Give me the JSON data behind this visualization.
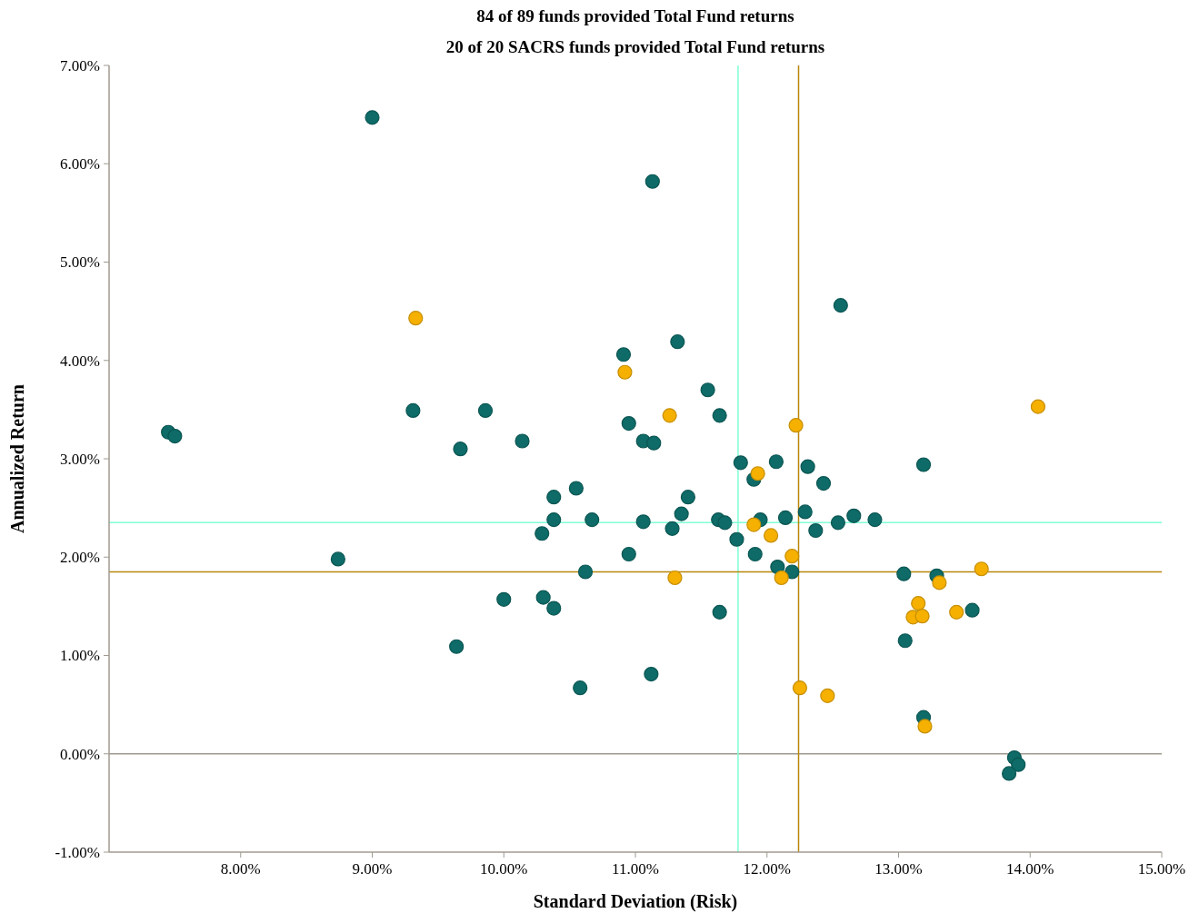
{
  "chart_data": {
    "type": "scatter",
    "title": "84 of 89 funds provided Total Fund returns",
    "subtitle": "20 of 20 SACRS funds provided Total Fund returns",
    "xlabel": "Standard Deviation (Risk)",
    "ylabel": "Annualized Return",
    "xlim": [
      7,
      15
    ],
    "ylim": [
      -1,
      7
    ],
    "xticks": [
      {
        "value": 8,
        "label": "8.00%"
      },
      {
        "value": 9,
        "label": "9.00%"
      },
      {
        "value": 10,
        "label": "10.00%"
      },
      {
        "value": 11,
        "label": "11.00%"
      },
      {
        "value": 12,
        "label": "12.00%"
      },
      {
        "value": 13,
        "label": "13.00%"
      },
      {
        "value": 14,
        "label": "14.00%"
      },
      {
        "value": 15,
        "label": "15.00%"
      }
    ],
    "yticks": [
      {
        "value": -1,
        "label": "-1.00%"
      },
      {
        "value": 0,
        "label": "0.00%"
      },
      {
        "value": 1,
        "label": "1.00%"
      },
      {
        "value": 2,
        "label": "2.00%"
      },
      {
        "value": 3,
        "label": "3.00%"
      },
      {
        "value": 4,
        "label": "4.00%"
      },
      {
        "value": 5,
        "label": "5.00%"
      },
      {
        "value": 6,
        "label": "6.00%"
      },
      {
        "value": 7,
        "label": "7.00%"
      }
    ],
    "grid": false,
    "marker": "circle",
    "ref_lines": [
      {
        "axis": "y",
        "value": 0,
        "color": "#a09a90"
      },
      {
        "axis": "x",
        "value": 11.78,
        "color": "#7fffd4"
      },
      {
        "axis": "y",
        "value": 2.35,
        "color": "#7fffd4"
      },
      {
        "axis": "x",
        "value": 12.24,
        "color": "#b8860b"
      },
      {
        "axis": "y",
        "value": 1.85,
        "color": "#b8860b"
      }
    ],
    "series": [
      {
        "color": "#0e6b67",
        "x": [
          9.0,
          11.13,
          12.56,
          11.32,
          10.91,
          11.55,
          9.31,
          9.86,
          7.45,
          7.5,
          11.64,
          10.95,
          10.14,
          9.67,
          11.06,
          11.14,
          11.8,
          12.07,
          12.31,
          13.19,
          12.43,
          11.9,
          10.55,
          10.38,
          11.4,
          11.35,
          12.29,
          12.66,
          12.82,
          10.38,
          10.67,
          11.06,
          11.63,
          11.68,
          11.95,
          12.14,
          12.54,
          12.37,
          11.28,
          10.29,
          11.77,
          10.95,
          11.91,
          12.08,
          12.19,
          10.62,
          13.04,
          13.29,
          8.74,
          10.0,
          10.3,
          10.38,
          11.64,
          13.56,
          9.64,
          13.05,
          11.12,
          10.58,
          13.19,
          13.88,
          13.91,
          13.84
        ],
        "values": [
          6.47,
          5.82,
          4.56,
          4.19,
          4.06,
          3.7,
          3.49,
          3.49,
          3.27,
          3.23,
          3.44,
          3.36,
          3.18,
          3.1,
          3.18,
          3.16,
          2.96,
          2.97,
          2.92,
          2.94,
          2.75,
          2.79,
          2.7,
          2.61,
          2.61,
          2.44,
          2.46,
          2.42,
          2.38,
          2.38,
          2.38,
          2.36,
          2.38,
          2.35,
          2.38,
          2.4,
          2.35,
          2.27,
          2.29,
          2.24,
          2.18,
          2.03,
          2.03,
          1.9,
          1.85,
          1.85,
          1.83,
          1.81,
          1.98,
          1.57,
          1.59,
          1.48,
          1.44,
          1.46,
          1.09,
          1.15,
          0.81,
          0.67,
          0.37,
          -0.04,
          -0.11,
          -0.2
        ]
      },
      {
        "color": "#f5b000",
        "x": [
          9.33,
          10.92,
          11.26,
          12.22,
          14.06,
          11.93,
          11.9,
          12.03,
          12.19,
          12.11,
          11.3,
          13.63,
          13.15,
          13.31,
          13.11,
          13.18,
          13.44,
          12.25,
          12.46,
          13.2
        ],
        "values": [
          4.43,
          3.88,
          3.44,
          3.34,
          3.53,
          2.85,
          2.33,
          2.22,
          2.01,
          1.79,
          1.79,
          1.88,
          1.53,
          1.74,
          1.39,
          1.4,
          1.44,
          0.67,
          0.59,
          0.28
        ]
      }
    ]
  }
}
